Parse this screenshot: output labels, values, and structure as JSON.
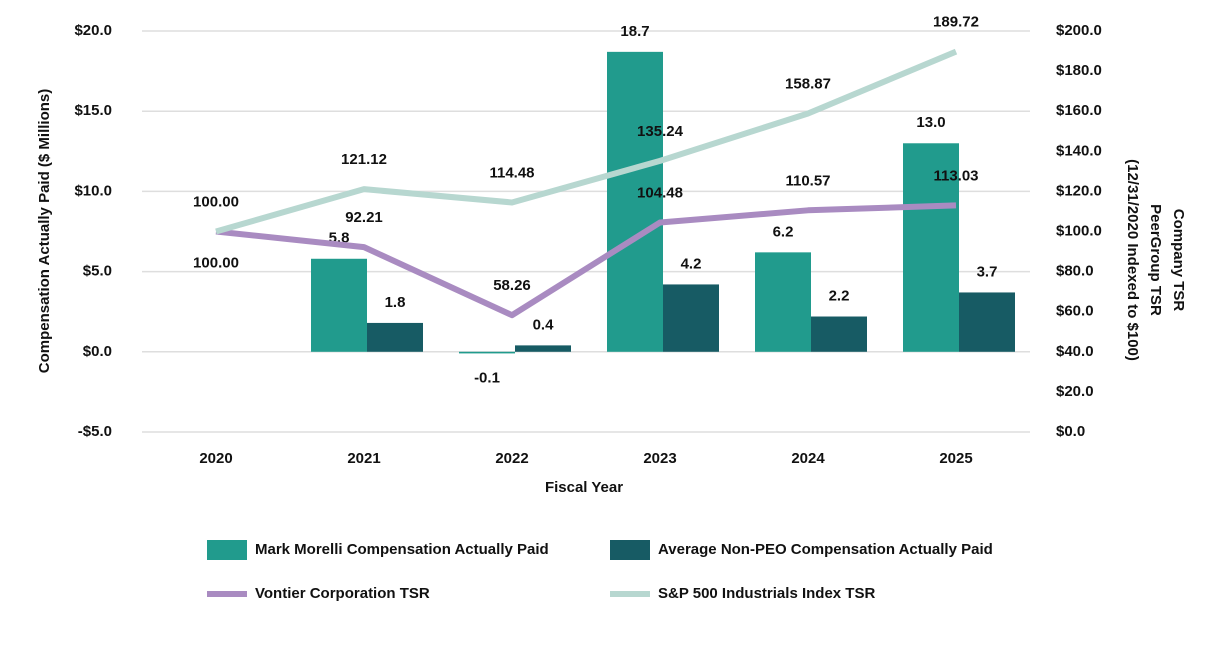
{
  "chart_data": {
    "type": "bar-line",
    "x_axis_label": "Fiscal Year",
    "y_axis_label": "Compensation Actually Paid ($ Millions)",
    "y2_axis_label": [
      "Company TSR",
      "PeerGroup TSR",
      "(12/31/2020 Indexed to $100)"
    ],
    "categories": [
      "2020",
      "2021",
      "2022",
      "2023",
      "2024",
      "2025"
    ],
    "ylim": [
      -5,
      20
    ],
    "yticks": [
      {
        "value": -5,
        "label": "-$5.0"
      },
      {
        "value": 0,
        "label": "$0.0"
      },
      {
        "value": 5,
        "label": "$5.0"
      },
      {
        "value": 10,
        "label": "$10.0"
      },
      {
        "value": 15,
        "label": "$15.0"
      },
      {
        "value": 20,
        "label": "$20.0"
      }
    ],
    "y2lim": [
      0,
      200
    ],
    "y2ticks": [
      {
        "value": 0,
        "label": "$0.0"
      },
      {
        "value": 20,
        "label": "$20.0"
      },
      {
        "value": 40,
        "label": "$40.0"
      },
      {
        "value": 60,
        "label": "$60.0"
      },
      {
        "value": 80,
        "label": "$80.0"
      },
      {
        "value": 100,
        "label": "$100.0"
      },
      {
        "value": 120,
        "label": "$120.0"
      },
      {
        "value": 140,
        "label": "$140.0"
      },
      {
        "value": 160,
        "label": "$160.0"
      },
      {
        "value": 180,
        "label": "$180.0"
      },
      {
        "value": 200,
        "label": "$200.0"
      }
    ],
    "grid": true,
    "series": [
      {
        "name": "Mark Morelli Compensation Actually Paid",
        "type": "bar",
        "color": "#219b8d",
        "values": [
          null,
          5.8,
          -0.1,
          18.7,
          6.2,
          13.0
        ],
        "value_labels": [
          null,
          "5.8",
          "-0.1",
          "18.7",
          "6.2",
          "13.0"
        ]
      },
      {
        "name": "Average Non-PEO Compensation Actually Paid",
        "type": "bar",
        "color": "#175b64",
        "values": [
          null,
          1.8,
          0.4,
          4.2,
          2.2,
          3.7
        ],
        "value_labels": [
          null,
          "1.8",
          "0.4",
          "4.2",
          "2.2",
          "3.7"
        ]
      },
      {
        "name": "Vontier Corporation TSR",
        "type": "line",
        "axis": "y2",
        "color": "#a98bc1",
        "values": [
          100,
          92.21,
          58.26,
          104.48,
          110.57,
          113.03
        ],
        "value_labels": [
          "100.00",
          "92.21",
          "58.26",
          "104.48",
          "110.57",
          "113.03"
        ]
      },
      {
        "name": "S&P 500 Industrials Index TSR",
        "type": "line",
        "axis": "y2",
        "color": "#b7d7d0",
        "values": [
          100,
          121.12,
          114.48,
          135.24,
          158.87,
          189.72
        ],
        "value_labels": [
          "100.00",
          "121.12",
          "114.48",
          "135.24",
          "158.87",
          "189.72"
        ]
      }
    ]
  }
}
